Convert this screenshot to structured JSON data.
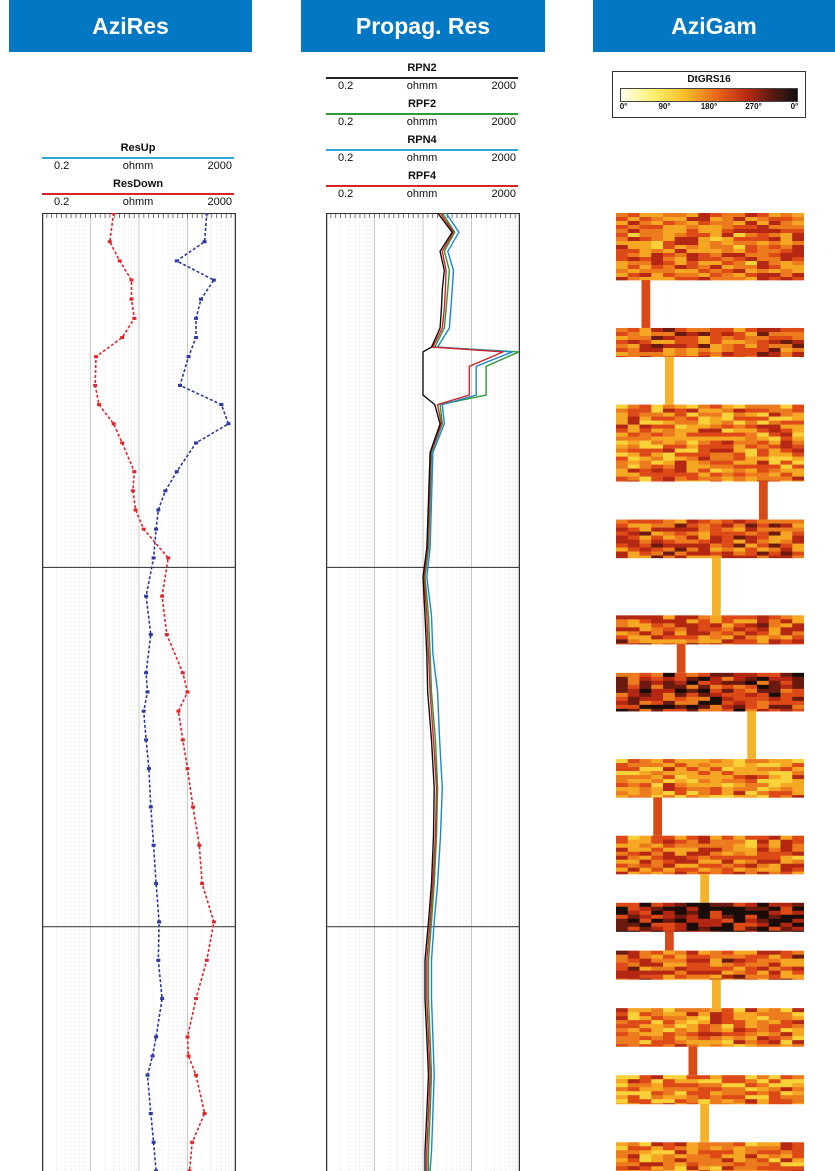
{
  "panels": {
    "aziRes": "AziRes",
    "propagRes": "Propag. Res",
    "aziGam": "AziGam"
  },
  "colors": {
    "header_bg": "#0277c3",
    "resup": "#2b3aa3",
    "resdown": "#e0262b",
    "rpn2": "#1e86cf",
    "rpf2": "#2f9a35",
    "rpn4": "#1e86cf",
    "rpf4": "#d3262b"
  },
  "aziRes_headers": [
    {
      "name": "ResUp",
      "min": "0.2",
      "unit": "ohmm",
      "max": "2000",
      "color": "#2fa6d9"
    },
    {
      "name": "ResDown",
      "min": "0.2",
      "unit": "ohmm",
      "max": "2000",
      "color": "#d3262b"
    }
  ],
  "propag_headers": [
    {
      "name": "RPN2",
      "min": "0.2",
      "unit": "ohmm",
      "max": "2000",
      "color": "#222222"
    },
    {
      "name": "RPF2",
      "min": "0.2",
      "unit": "ohmm",
      "max": "2000",
      "color": "#2f9a35"
    },
    {
      "name": "RPN4",
      "min": "0.2",
      "unit": "ohmm",
      "max": "2000",
      "color": "#2fa6d9"
    },
    {
      "name": "RPF4",
      "min": "0.2",
      "unit": "ohmm",
      "max": "2000",
      "color": "#d3262b"
    }
  ],
  "legend": {
    "title": "DtGRS16",
    "ticks": [
      "0°",
      "90°",
      "180°",
      "270°",
      "0°"
    ]
  },
  "chart_data": [
    {
      "type": "line",
      "title": "AziRes",
      "x_scale": "log",
      "xlim": [
        0.2,
        2000
      ],
      "series": [
        {
          "name": "ResUp",
          "depth_fraction": [
            0,
            0.03,
            0.05,
            0.07,
            0.09,
            0.11,
            0.13,
            0.15,
            0.18,
            0.2,
            0.22,
            0.24,
            0.27,
            0.29,
            0.31,
            0.33,
            0.36,
            0.4,
            0.44,
            0.48,
            0.5,
            0.52,
            0.55,
            0.58,
            0.62,
            0.66,
            0.7,
            0.74,
            0.78,
            0.82,
            0.86,
            0.88,
            0.9,
            0.94,
            0.97,
            1.0
          ],
          "values": [
            500,
            450,
            120,
            700,
            380,
            300,
            300,
            210,
            140,
            1000,
            1400,
            300,
            120,
            70,
            50,
            45,
            40,
            28,
            35,
            28,
            30,
            25,
            28,
            32,
            35,
            40,
            45,
            52,
            50,
            60,
            45,
            38,
            30,
            35,
            40,
            45
          ]
        },
        {
          "name": "ResDown",
          "depth_fraction": [
            0,
            0.03,
            0.05,
            0.07,
            0.09,
            0.11,
            0.13,
            0.15,
            0.18,
            0.2,
            0.22,
            0.24,
            0.27,
            0.29,
            0.31,
            0.33,
            0.36,
            0.4,
            0.44,
            0.48,
            0.5,
            0.52,
            0.55,
            0.58,
            0.62,
            0.66,
            0.7,
            0.74,
            0.78,
            0.82,
            0.86,
            0.88,
            0.9,
            0.94,
            0.97,
            1.0
          ],
          "values": [
            6,
            5,
            8,
            14,
            14,
            16,
            9,
            2.6,
            2.5,
            3,
            6,
            9,
            16,
            15,
            17,
            25,
            80,
            60,
            75,
            160,
            200,
            130,
            160,
            200,
            260,
            350,
            400,
            700,
            500,
            300,
            200,
            210,
            300,
            450,
            250,
            220
          ]
        }
      ]
    },
    {
      "type": "line",
      "title": "Propag. Res",
      "x_scale": "log",
      "xlim": [
        0.2,
        2000
      ],
      "series": [
        {
          "name": "RPN2",
          "depth_fraction": [
            0,
            0.02,
            0.04,
            0.06,
            0.08,
            0.1,
            0.12,
            0.14,
            0.145,
            0.16,
            0.19,
            0.2,
            0.22,
            0.25,
            0.3,
            0.35,
            0.38,
            0.42,
            0.46,
            0.5,
            0.55,
            0.6,
            0.65,
            0.7,
            0.74,
            0.78,
            0.82,
            0.86,
            0.9,
            0.94,
            0.98,
            1.0
          ],
          "values": [
            40,
            80,
            45,
            55,
            50,
            48,
            45,
            30,
            20,
            20,
            20,
            35,
            45,
            28,
            26,
            24,
            20,
            22,
            24,
            25,
            30,
            34,
            33,
            30,
            26,
            22,
            22,
            24,
            26,
            24,
            22,
            22
          ]
        },
        {
          "name": "RPF2",
          "depth_fraction": [
            0,
            0.02,
            0.04,
            0.06,
            0.08,
            0.1,
            0.12,
            0.14,
            0.145,
            0.16,
            0.19,
            0.2,
            0.22,
            0.25,
            0.3,
            0.35,
            0.38,
            0.42,
            0.46,
            0.5,
            0.55,
            0.6,
            0.65,
            0.7,
            0.74,
            0.78,
            0.82,
            0.86,
            0.9,
            0.94,
            0.98,
            1.0
          ],
          "values": [
            50,
            90,
            55,
            70,
            65,
            60,
            55,
            35,
            1900,
            400,
            400,
            45,
            50,
            30,
            28,
            26,
            22,
            26,
            28,
            30,
            36,
            40,
            38,
            34,
            30,
            26,
            26,
            28,
            30,
            28,
            26,
            26
          ]
        },
        {
          "name": "RPN4",
          "depth_fraction": [
            0,
            0.02,
            0.04,
            0.06,
            0.08,
            0.1,
            0.12,
            0.14,
            0.145,
            0.16,
            0.19,
            0.2,
            0.22,
            0.25,
            0.3,
            0.35,
            0.38,
            0.42,
            0.46,
            0.5,
            0.55,
            0.6,
            0.65,
            0.7,
            0.74,
            0.78,
            0.82,
            0.86,
            0.9,
            0.94,
            0.98,
            1.0
          ],
          "values": [
            60,
            110,
            65,
            85,
            80,
            75,
            70,
            40,
            1400,
            250,
            250,
            50,
            55,
            32,
            30,
            28,
            24,
            30,
            32,
            40,
            44,
            50,
            46,
            40,
            34,
            30,
            30,
            32,
            34,
            32,
            30,
            28
          ]
        },
        {
          "name": "RPF4",
          "depth_fraction": [
            0,
            0.02,
            0.04,
            0.06,
            0.08,
            0.1,
            0.12,
            0.14,
            0.145,
            0.16,
            0.19,
            0.2,
            0.22,
            0.25,
            0.3,
            0.35,
            0.38,
            0.42,
            0.46,
            0.5,
            0.55,
            0.6,
            0.65,
            0.7,
            0.74,
            0.78,
            0.82,
            0.86,
            0.9,
            0.94,
            0.98,
            1.0
          ],
          "values": [
            45,
            85,
            50,
            60,
            58,
            55,
            50,
            32,
            900,
            180,
            180,
            40,
            48,
            29,
            27,
            25,
            21,
            24,
            26,
            28,
            33,
            38,
            36,
            32,
            28,
            24,
            24,
            26,
            28,
            26,
            24,
            24
          ]
        }
      ]
    },
    {
      "type": "heatmap",
      "title": "AziGam",
      "columns": 16,
      "x_unit": "azimuth sector 0°-360°",
      "bands": [
        {
          "from": 0.0,
          "to": 0.07,
          "level": 0.55
        },
        {
          "from": 0.07,
          "to": 0.12,
          "level": 0.0,
          "streak_col": 2
        },
        {
          "from": 0.12,
          "to": 0.15,
          "level": 0.62
        },
        {
          "from": 0.15,
          "to": 0.2,
          "level": 0.0,
          "streak_col": 4
        },
        {
          "from": 0.2,
          "to": 0.28,
          "level": 0.5
        },
        {
          "from": 0.28,
          "to": 0.32,
          "level": 0.0,
          "streak_col": 12
        },
        {
          "from": 0.32,
          "to": 0.36,
          "level": 0.6
        },
        {
          "from": 0.36,
          "to": 0.42,
          "level": 0.0,
          "streak_col": 8
        },
        {
          "from": 0.42,
          "to": 0.45,
          "level": 0.58
        },
        {
          "from": 0.45,
          "to": 0.48,
          "level": 0.0,
          "streak_col": 5
        },
        {
          "from": 0.48,
          "to": 0.52,
          "level": 0.75
        },
        {
          "from": 0.52,
          "to": 0.57,
          "level": 0.0,
          "streak_col": 11
        },
        {
          "from": 0.57,
          "to": 0.61,
          "level": 0.45
        },
        {
          "from": 0.61,
          "to": 0.65,
          "level": 0.0,
          "streak_col": 3
        },
        {
          "from": 0.65,
          "to": 0.69,
          "level": 0.55
        },
        {
          "from": 0.69,
          "to": 0.72,
          "level": 0.0,
          "streak_col": 7
        },
        {
          "from": 0.72,
          "to": 0.75,
          "level": 0.85
        },
        {
          "from": 0.75,
          "to": 0.77,
          "level": 0.0,
          "streak_col": 4
        },
        {
          "from": 0.77,
          "to": 0.8,
          "level": 0.6
        },
        {
          "from": 0.8,
          "to": 0.83,
          "level": 0.0,
          "streak_col": 8
        },
        {
          "from": 0.83,
          "to": 0.87,
          "level": 0.5
        },
        {
          "from": 0.87,
          "to": 0.9,
          "level": 0.0,
          "streak_col": 6
        },
        {
          "from": 0.9,
          "to": 0.93,
          "level": 0.45
        },
        {
          "from": 0.93,
          "to": 0.97,
          "level": 0.0,
          "streak_col": 7
        },
        {
          "from": 0.97,
          "to": 1.0,
          "level": 0.5
        }
      ]
    }
  ]
}
